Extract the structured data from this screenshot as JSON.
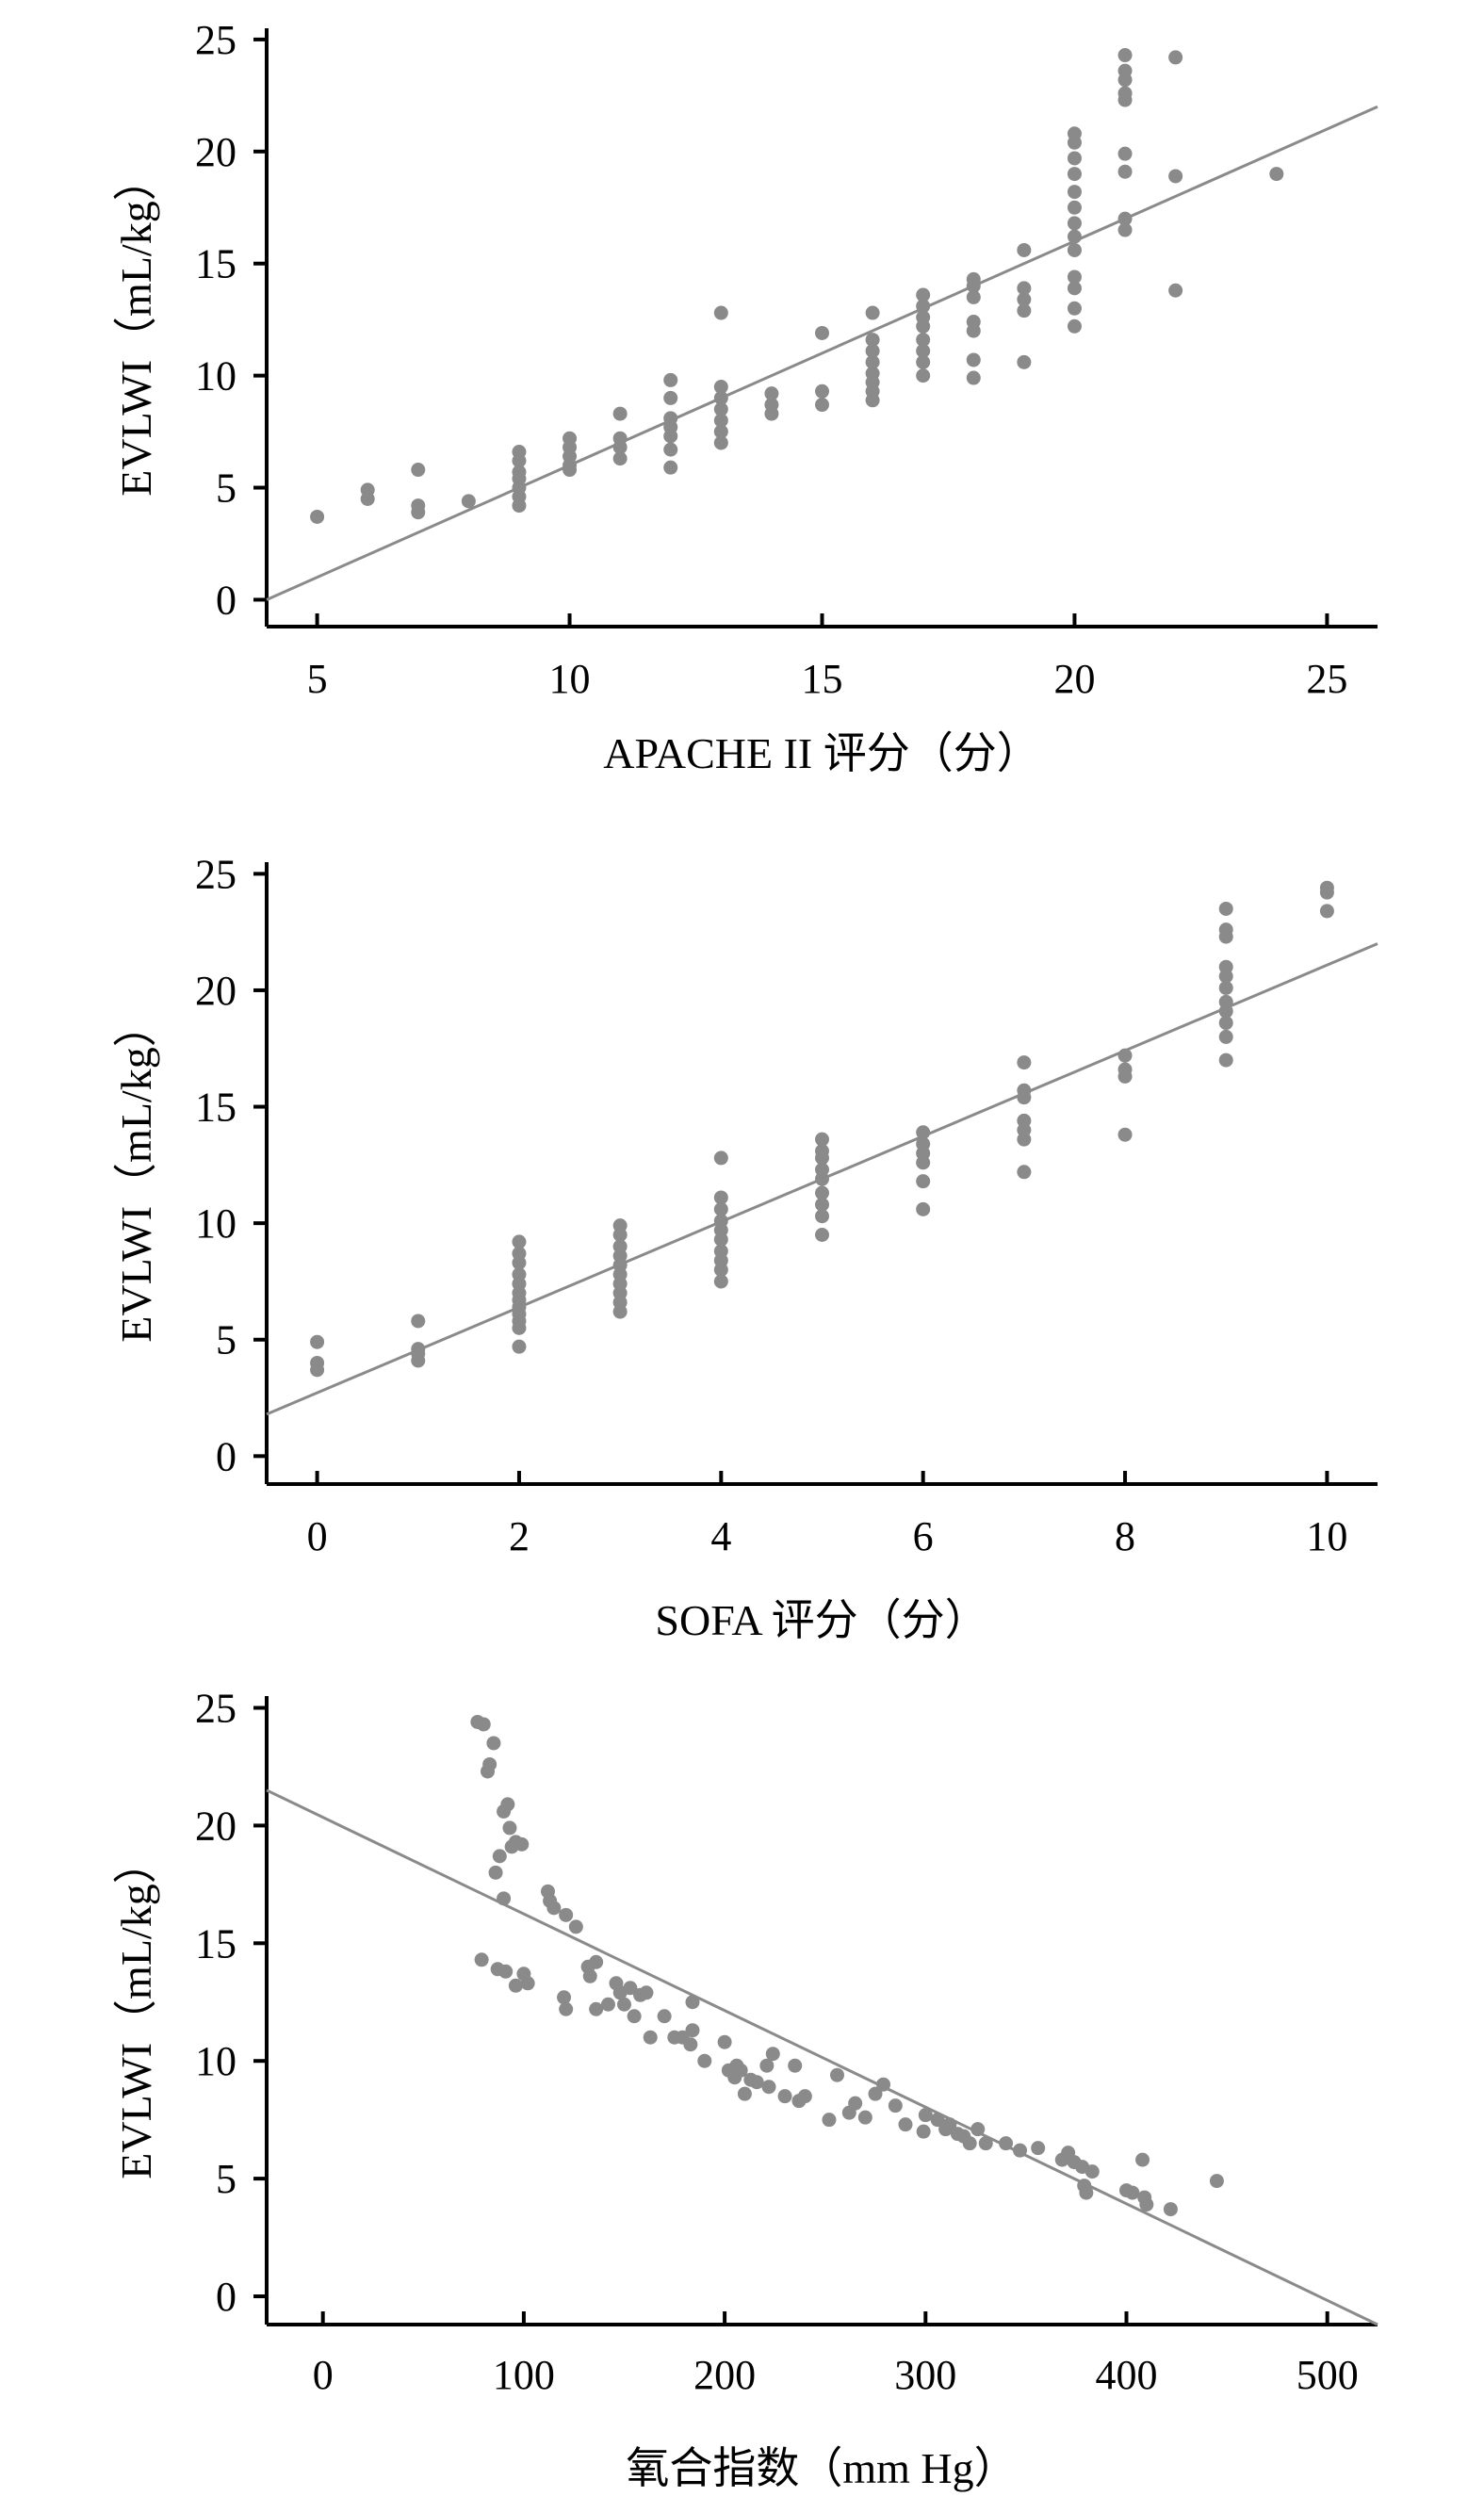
{
  "chart_data": [
    {
      "type": "scatter",
      "xlabel": "APACHE II 评分（分）",
      "ylabel": "EVLWI（mL/kg）",
      "xlim": [
        4,
        26
      ],
      "ylim": [
        -1.2,
        25.5
      ],
      "xticks": [
        5,
        10,
        15,
        20,
        25
      ],
      "yticks": [
        0,
        5,
        10,
        15,
        20,
        25
      ],
      "grid": false,
      "trendline": {
        "x": [
          4,
          26
        ],
        "y": [
          0,
          22
        ]
      },
      "points": [
        [
          5,
          3.7
        ],
        [
          6,
          4.5
        ],
        [
          6,
          4.9
        ],
        [
          7,
          3.9
        ],
        [
          7,
          4.2
        ],
        [
          7,
          5.8
        ],
        [
          8,
          4.4
        ],
        [
          9,
          4.2
        ],
        [
          9,
          4.6
        ],
        [
          9,
          5.0
        ],
        [
          9,
          5.4
        ],
        [
          9,
          5.7
        ],
        [
          9,
          6.2
        ],
        [
          9,
          6.6
        ],
        [
          10,
          5.8
        ],
        [
          10,
          6.0
        ],
        [
          10,
          6.4
        ],
        [
          10,
          6.8
        ],
        [
          10,
          7.2
        ],
        [
          11,
          6.3
        ],
        [
          11,
          6.8
        ],
        [
          11,
          7.2
        ],
        [
          11,
          8.3
        ],
        [
          12,
          5.9
        ],
        [
          12,
          6.7
        ],
        [
          12,
          7.3
        ],
        [
          12,
          7.7
        ],
        [
          12,
          8.1
        ],
        [
          12,
          9.0
        ],
        [
          12,
          9.8
        ],
        [
          13,
          7.0
        ],
        [
          13,
          7.5
        ],
        [
          13,
          8.0
        ],
        [
          13,
          8.5
        ],
        [
          13,
          9.0
        ],
        [
          13,
          9.5
        ],
        [
          13,
          12.8
        ],
        [
          14,
          8.3
        ],
        [
          14,
          8.7
        ],
        [
          14,
          9.2
        ],
        [
          15,
          8.7
        ],
        [
          15,
          9.3
        ],
        [
          15,
          11.9
        ],
        [
          16,
          8.9
        ],
        [
          16,
          9.3
        ],
        [
          16,
          9.7
        ],
        [
          16,
          10.1
        ],
        [
          16,
          10.6
        ],
        [
          16,
          11.1
        ],
        [
          16,
          11.6
        ],
        [
          16,
          12.8
        ],
        [
          17,
          10.0
        ],
        [
          17,
          10.6
        ],
        [
          17,
          11.1
        ],
        [
          17,
          11.6
        ],
        [
          17,
          12.2
        ],
        [
          17,
          12.6
        ],
        [
          17,
          13.1
        ],
        [
          17,
          13.6
        ],
        [
          18,
          9.9
        ],
        [
          18,
          10.7
        ],
        [
          18,
          12.0
        ],
        [
          18,
          12.4
        ],
        [
          18,
          13.5
        ],
        [
          18,
          14.0
        ],
        [
          18,
          14.3
        ],
        [
          19,
          10.6
        ],
        [
          19,
          12.9
        ],
        [
          19,
          13.4
        ],
        [
          19,
          13.9
        ],
        [
          19,
          15.6
        ],
        [
          20,
          12.2
        ],
        [
          20,
          13.0
        ],
        [
          20,
          13.9
        ],
        [
          20,
          14.4
        ],
        [
          20,
          15.6
        ],
        [
          20,
          16.2
        ],
        [
          20,
          16.8
        ],
        [
          20,
          17.5
        ],
        [
          20,
          18.2
        ],
        [
          20,
          19.0
        ],
        [
          20,
          19.7
        ],
        [
          20,
          20.4
        ],
        [
          20,
          20.8
        ],
        [
          21,
          16.5
        ],
        [
          21,
          17.0
        ],
        [
          21,
          19.1
        ],
        [
          21,
          19.9
        ],
        [
          21,
          22.3
        ],
        [
          21,
          22.6
        ],
        [
          21,
          23.2
        ],
        [
          21,
          23.6
        ],
        [
          21,
          24.3
        ],
        [
          22,
          13.8
        ],
        [
          22,
          18.9
        ],
        [
          22,
          24.2
        ],
        [
          24,
          19.0
        ]
      ]
    },
    {
      "type": "scatter",
      "xlabel": "SOFA 评分（分）",
      "ylabel": "EVLWI（mL/kg）",
      "xlim": [
        -0.5,
        10.5
      ],
      "ylim": [
        -1.2,
        25.5
      ],
      "xticks": [
        0,
        2,
        4,
        6,
        8,
        10
      ],
      "yticks": [
        0,
        5,
        10,
        15,
        20,
        25
      ],
      "grid": false,
      "trendline": {
        "x": [
          -0.5,
          10.5
        ],
        "y": [
          1.8,
          22
        ]
      },
      "points": [
        [
          0,
          3.7
        ],
        [
          0,
          4.0
        ],
        [
          0,
          4.9
        ],
        [
          1,
          4.1
        ],
        [
          1,
          4.4
        ],
        [
          1,
          4.6
        ],
        [
          1,
          5.8
        ],
        [
          2,
          4.7
        ],
        [
          2,
          5.5
        ],
        [
          2,
          5.8
        ],
        [
          2,
          6.1
        ],
        [
          2,
          6.4
        ],
        [
          2,
          6.7
        ],
        [
          2,
          7.0
        ],
        [
          2,
          7.4
        ],
        [
          2,
          7.8
        ],
        [
          2,
          8.3
        ],
        [
          2,
          8.7
        ],
        [
          2,
          9.2
        ],
        [
          3,
          6.2
        ],
        [
          3,
          6.6
        ],
        [
          3,
          7.0
        ],
        [
          3,
          7.4
        ],
        [
          3,
          7.8
        ],
        [
          3,
          8.2
        ],
        [
          3,
          8.6
        ],
        [
          3,
          9.0
        ],
        [
          3,
          9.5
        ],
        [
          3,
          9.9
        ],
        [
          4,
          7.5
        ],
        [
          4,
          8.0
        ],
        [
          4,
          8.4
        ],
        [
          4,
          8.8
        ],
        [
          4,
          9.3
        ],
        [
          4,
          9.7
        ],
        [
          4,
          10.1
        ],
        [
          4,
          10.6
        ],
        [
          4,
          11.1
        ],
        [
          4,
          12.8
        ],
        [
          5,
          9.5
        ],
        [
          5,
          10.3
        ],
        [
          5,
          10.8
        ],
        [
          5,
          11.3
        ],
        [
          5,
          11.9
        ],
        [
          5,
          12.3
        ],
        [
          5,
          12.8
        ],
        [
          5,
          13.1
        ],
        [
          5,
          13.6
        ],
        [
          6,
          10.6
        ],
        [
          6,
          11.8
        ],
        [
          6,
          12.6
        ],
        [
          6,
          13.0
        ],
        [
          6,
          13.4
        ],
        [
          6,
          13.9
        ],
        [
          7,
          12.2
        ],
        [
          7,
          13.6
        ],
        [
          7,
          14.0
        ],
        [
          7,
          14.4
        ],
        [
          7,
          15.4
        ],
        [
          7,
          15.7
        ],
        [
          7,
          16.9
        ],
        [
          8,
          13.8
        ],
        [
          8,
          16.3
        ],
        [
          8,
          16.6
        ],
        [
          8,
          17.2
        ],
        [
          9,
          17.0
        ],
        [
          9,
          18.0
        ],
        [
          9,
          18.6
        ],
        [
          9,
          19.1
        ],
        [
          9,
          19.5
        ],
        [
          9,
          20.1
        ],
        [
          9,
          20.6
        ],
        [
          9,
          21.0
        ],
        [
          9,
          22.3
        ],
        [
          9,
          22.6
        ],
        [
          9,
          23.5
        ],
        [
          10,
          23.4
        ],
        [
          10,
          24.2
        ],
        [
          10,
          24.4
        ]
      ]
    },
    {
      "type": "scatter",
      "xlabel": "氧合指数（mm Hg）",
      "ylabel": "EVLWI（mL/kg）",
      "xlim": [
        -28,
        525
      ],
      "ylim": [
        -1.2,
        25.5
      ],
      "xticks": [
        0,
        100,
        200,
        300,
        400,
        500
      ],
      "yticks": [
        0,
        5,
        10,
        15,
        20,
        25
      ],
      "grid": false,
      "trendline": {
        "x": [
          -28,
          525
        ],
        "y": [
          21.5,
          -1.2
        ]
      },
      "points": [
        [
          77,
          24.4
        ],
        [
          80,
          24.3
        ],
        [
          82,
          22.3
        ],
        [
          83,
          22.6
        ],
        [
          85,
          23.5
        ],
        [
          86,
          18.0
        ],
        [
          88,
          18.7
        ],
        [
          90,
          20.6
        ],
        [
          92,
          20.9
        ],
        [
          93,
          19.9
        ],
        [
          94,
          19.1
        ],
        [
          96,
          19.3
        ],
        [
          99,
          19.2
        ],
        [
          90,
          16.9
        ],
        [
          79,
          14.3
        ],
        [
          87,
          13.9
        ],
        [
          91,
          13.8
        ],
        [
          96,
          13.2
        ],
        [
          100,
          13.7
        ],
        [
          102,
          13.3
        ],
        [
          112,
          17.2
        ],
        [
          113,
          16.8
        ],
        [
          115,
          16.5
        ],
        [
          121,
          16.2
        ],
        [
          126,
          15.7
        ],
        [
          120,
          12.7
        ],
        [
          121,
          12.2
        ],
        [
          132,
          14.0
        ],
        [
          133,
          13.6
        ],
        [
          136,
          14.2
        ],
        [
          136,
          12.2
        ],
        [
          142,
          12.4
        ],
        [
          146,
          13.3
        ],
        [
          148,
          12.9
        ],
        [
          150,
          12.4
        ],
        [
          153,
          13.1
        ],
        [
          155,
          11.9
        ],
        [
          158,
          12.8
        ],
        [
          161,
          12.9
        ],
        [
          163,
          11.0
        ],
        [
          170,
          11.9
        ],
        [
          175,
          11.0
        ],
        [
          179,
          11.0
        ],
        [
          183,
          10.7
        ],
        [
          184,
          11.3
        ],
        [
          184,
          12.5
        ],
        [
          190,
          10.0
        ],
        [
          200,
          10.8
        ],
        [
          202,
          9.6
        ],
        [
          205,
          9.3
        ],
        [
          206,
          9.8
        ],
        [
          208,
          9.6
        ],
        [
          210,
          8.6
        ],
        [
          213,
          9.2
        ],
        [
          216,
          9.1
        ],
        [
          221,
          9.8
        ],
        [
          222,
          8.9
        ],
        [
          224,
          10.3
        ],
        [
          230,
          8.5
        ],
        [
          235,
          9.8
        ],
        [
          237,
          8.3
        ],
        [
          240,
          8.5
        ],
        [
          252,
          7.5
        ],
        [
          256,
          9.4
        ],
        [
          262,
          7.8
        ],
        [
          265,
          8.2
        ],
        [
          270,
          7.6
        ],
        [
          275,
          8.6
        ],
        [
          279,
          9.0
        ],
        [
          285,
          8.1
        ],
        [
          290,
          7.3
        ],
        [
          299,
          7.0
        ],
        [
          300,
          7.7
        ],
        [
          306,
          7.5
        ],
        [
          310,
          7.1
        ],
        [
          312,
          7.3
        ],
        [
          316,
          6.9
        ],
        [
          319,
          6.8
        ],
        [
          322,
          6.5
        ],
        [
          326,
          7.1
        ],
        [
          330,
          6.5
        ],
        [
          340,
          6.5
        ],
        [
          347,
          6.2
        ],
        [
          356,
          6.3
        ],
        [
          368,
          5.8
        ],
        [
          371,
          6.1
        ],
        [
          374,
          5.7
        ],
        [
          378,
          5.5
        ],
        [
          379,
          4.7
        ],
        [
          380,
          4.4
        ],
        [
          383,
          5.3
        ],
        [
          400,
          4.5
        ],
        [
          403,
          4.4
        ],
        [
          408,
          5.8
        ],
        [
          409,
          4.2
        ],
        [
          410,
          3.9
        ],
        [
          422,
          3.7
        ],
        [
          445,
          4.9
        ]
      ]
    }
  ]
}
